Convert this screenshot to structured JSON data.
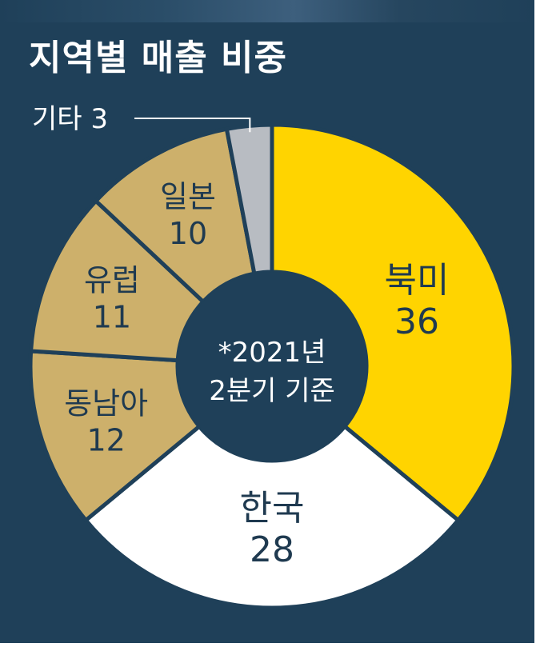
{
  "title": "지역별 매출 비중",
  "center_note": [
    "*2021년",
    "2분기 기준"
  ],
  "chart_data": {
    "type": "pie",
    "title": "지역별 매출 비중",
    "note": "*2021년 2분기 기준",
    "slices": [
      {
        "label": "북미",
        "value": 36,
        "color": "#ffd400",
        "text_color": "#1f3a50"
      },
      {
        "label": "한국",
        "value": 28,
        "color": "#ffffff",
        "text_color": "#1f3a50"
      },
      {
        "label": "동남아",
        "value": 12,
        "color": "#cdb06b",
        "text_color": "#1f3a50"
      },
      {
        "label": "유럽",
        "value": 11,
        "color": "#cdb06b",
        "text_color": "#1f3a50"
      },
      {
        "label": "일본",
        "value": 10,
        "color": "#cdb06b",
        "text_color": "#1f3a50"
      },
      {
        "label": "기타",
        "value": 3,
        "color": "#b8bcc2",
        "text_color": "#ffffff"
      }
    ]
  }
}
